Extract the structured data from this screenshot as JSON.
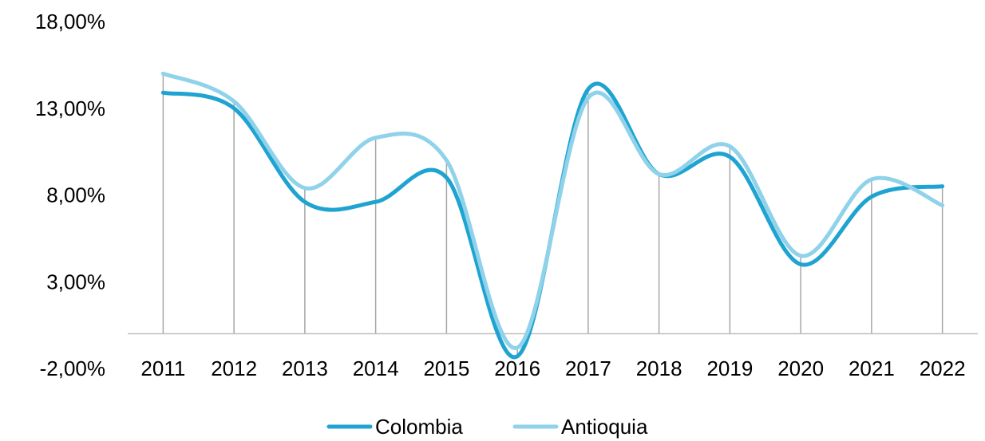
{
  "chart_data": {
    "type": "line",
    "smooth": true,
    "categories": [
      "2011",
      "2012",
      "2013",
      "2014",
      "2015",
      "2016",
      "2017",
      "2018",
      "2019",
      "2020",
      "2021",
      "2022"
    ],
    "series": [
      {
        "name": "Colombia",
        "color": "#1fa3d1",
        "values": [
          13.9,
          13.0,
          7.6,
          7.6,
          9.0,
          -1.3,
          14.1,
          9.2,
          10.2,
          4.0,
          7.9,
          8.5
        ]
      },
      {
        "name": "Antioquia",
        "color": "#8fd2ea",
        "values": [
          15.0,
          13.4,
          8.4,
          11.3,
          10.0,
          -0.8,
          13.6,
          9.2,
          10.8,
          4.5,
          8.9,
          7.4
        ]
      }
    ],
    "y_ticks": [
      "18,00%",
      "13,00%",
      "8,00%",
      "3,00%",
      "-2,00%"
    ],
    "y_tick_values": [
      18,
      13,
      8,
      3,
      -2
    ],
    "ylim": [
      -2,
      18
    ],
    "x_axis_at": 0,
    "grid": "vertical drop lines",
    "legend_position": "bottom"
  }
}
